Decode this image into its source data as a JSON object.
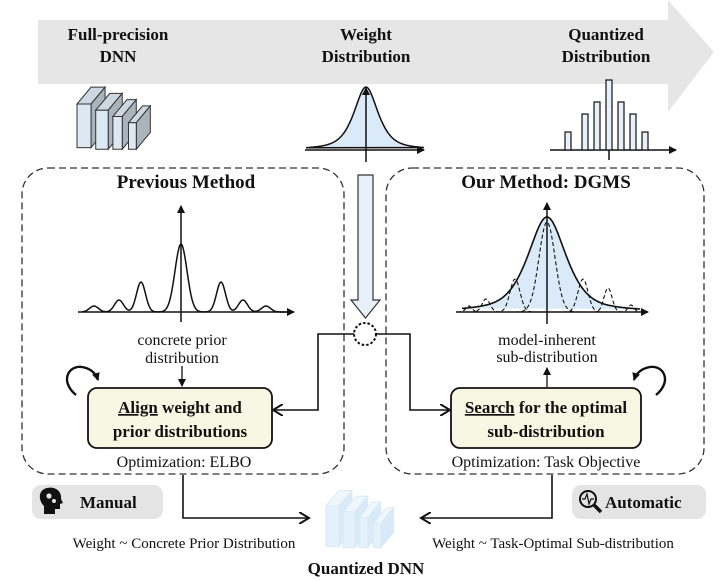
{
  "top_arrow": {
    "stage1": [
      "Full-precision",
      "DNN"
    ],
    "stage2": [
      "Weight",
      "Distribution"
    ],
    "stage3": [
      "Quantized",
      "Distribution"
    ]
  },
  "previous": {
    "title": "Previous Method",
    "curve_label": [
      "concrete prior",
      "distribution"
    ],
    "box_keyword": "Align",
    "box_line1_rest": " weight and",
    "box_line2": "prior distributions",
    "optimization": "Optimization: ELBO",
    "badge": "Manual",
    "badge_icon": "head-gears-icon",
    "result": "Weight ~ Concrete Prior Distribution"
  },
  "ours": {
    "title": "Our Method: DGMS",
    "curve_label": [
      "model-inherent",
      "sub-distribution"
    ],
    "box_keyword": "Search",
    "box_line1_rest": " for the optimal",
    "box_line2": "sub-distribution",
    "optimization": "Optimization: Task Objective",
    "badge": "Automatic",
    "badge_icon": "magnifier-waveform-icon",
    "result": "Weight ~ Task-Optimal Sub-distribution"
  },
  "output_label": "Quantized DNN",
  "colors": {
    "arrow_band": "#e6e6e6",
    "box_fill": "#f7f7e4",
    "curve_fill": "#dbeaf8",
    "badge_fill": "#e4e4e4"
  }
}
